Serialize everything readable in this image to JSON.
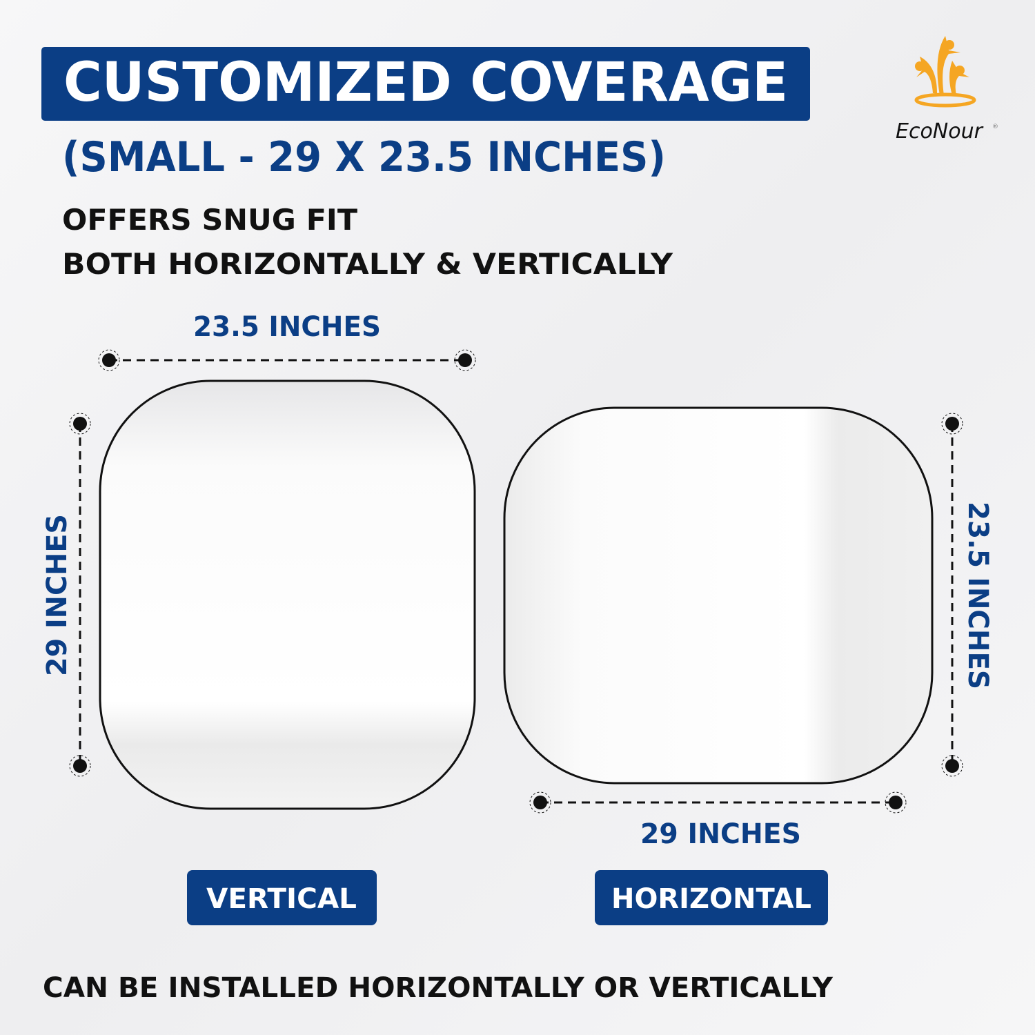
{
  "colors": {
    "brand_blue": "#0b3e85",
    "logo_orange": "#f5a623",
    "text_black": "#111111",
    "background": "#f4f4f5"
  },
  "header": {
    "title": "CUSTOMIZED COVERAGE",
    "subtitle": "(SMALL - 29 X 23.5 INCHES)",
    "tagline_1": "OFFERS SNUG FIT",
    "tagline_2": "BOTH HORIZONTALLY & VERTICALLY"
  },
  "logo": {
    "brand": "EcoNour",
    "registered": "®",
    "icon": "three-people-logo-icon"
  },
  "vertical": {
    "width_label": "23.5 INCHES",
    "height_label": "29 INCHES",
    "badge": "VERTICAL"
  },
  "horizontal": {
    "width_label": "29 INCHES",
    "height_label": "23.5 INCHES",
    "badge": "HORIZONTAL"
  },
  "footer": {
    "note": "CAN BE INSTALLED HORIZONTALLY OR VERTICALLY"
  }
}
